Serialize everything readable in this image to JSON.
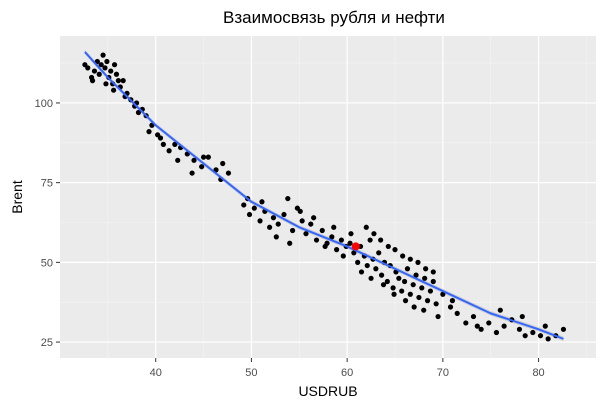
{
  "chart_data": {
    "type": "scatter",
    "title": "Взаимосвязь рубля и нефти",
    "xlabel": "USDRUB",
    "ylabel": "Brent",
    "xlim": [
      30,
      86
    ],
    "ylim": [
      20,
      121
    ],
    "xticks": [
      40,
      50,
      60,
      70,
      80
    ],
    "yticks": [
      25,
      50,
      75,
      100
    ],
    "xtick_labels": [
      "40",
      "50",
      "60",
      "70",
      "80"
    ],
    "ytick_labels": [
      "25",
      "50",
      "75",
      "100"
    ],
    "grid": true,
    "legend": "none",
    "colors": {
      "panel_bg": "#ebebeb",
      "grid_major": "#ffffff",
      "points": "#000000",
      "highlight": "#ff0000",
      "fit_line": "#3366ff",
      "fit_band": "#b3b3b3"
    },
    "points": [
      [
        32.6,
        112
      ],
      [
        32.9,
        111
      ],
      [
        33.3,
        108
      ],
      [
        33.6,
        110
      ],
      [
        33.9,
        113
      ],
      [
        34.1,
        109
      ],
      [
        34.3,
        112
      ],
      [
        34.5,
        115
      ],
      [
        34.7,
        111
      ],
      [
        34.9,
        113
      ],
      [
        35.1,
        108
      ],
      [
        35.3,
        110
      ],
      [
        35.5,
        106
      ],
      [
        35.7,
        112
      ],
      [
        35.9,
        109
      ],
      [
        36.1,
        107
      ],
      [
        36.3,
        105
      ],
      [
        36.6,
        107
      ],
      [
        37.0,
        103
      ],
      [
        37.4,
        101
      ],
      [
        37.8,
        99
      ],
      [
        38.2,
        97
      ],
      [
        38.6,
        98
      ],
      [
        39.0,
        96
      ],
      [
        39.6,
        93
      ],
      [
        40.2,
        90
      ],
      [
        40.8,
        87
      ],
      [
        41.4,
        85
      ],
      [
        42.0,
        87
      ],
      [
        42.6,
        86
      ],
      [
        43.3,
        84
      ],
      [
        44.0,
        82
      ],
      [
        44.8,
        80
      ],
      [
        45.5,
        83
      ],
      [
        46.3,
        79
      ],
      [
        47.0,
        81
      ],
      [
        47.6,
        78
      ],
      [
        33.4,
        107
      ],
      [
        34.8,
        106
      ],
      [
        35.6,
        104
      ],
      [
        36.8,
        102
      ],
      [
        38.0,
        100
      ],
      [
        39.3,
        91
      ],
      [
        40.5,
        89
      ],
      [
        42.3,
        82
      ],
      [
        43.8,
        78
      ],
      [
        45.0,
        83
      ],
      [
        46.8,
        76
      ],
      [
        49.2,
        68
      ],
      [
        49.8,
        65
      ],
      [
        50.3,
        67
      ],
      [
        50.9,
        63
      ],
      [
        51.4,
        66
      ],
      [
        51.9,
        61
      ],
      [
        52.3,
        64
      ],
      [
        52.8,
        62
      ],
      [
        53.4,
        65
      ],
      [
        53.8,
        70
      ],
      [
        54.3,
        60
      ],
      [
        54.8,
        67
      ],
      [
        55.3,
        63
      ],
      [
        55.7,
        59
      ],
      [
        56.2,
        62
      ],
      [
        56.8,
        57
      ],
      [
        57.4,
        60
      ],
      [
        57.9,
        56
      ],
      [
        58.4,
        58
      ],
      [
        58.9,
        54
      ],
      [
        59.4,
        57
      ],
      [
        59.9,
        55
      ],
      [
        49.6,
        70
      ],
      [
        51.1,
        69
      ],
      [
        52.6,
        58
      ],
      [
        54.0,
        56
      ],
      [
        55.1,
        66
      ],
      [
        56.5,
        64
      ],
      [
        57.7,
        55
      ],
      [
        58.6,
        61
      ],
      [
        59.6,
        52
      ],
      [
        60.4,
        59
      ],
      [
        60.3,
        56
      ],
      [
        60.7,
        53
      ],
      [
        61.1,
        50
      ],
      [
        61.4,
        55
      ],
      [
        61.8,
        52
      ],
      [
        62.1,
        49
      ],
      [
        62.4,
        57
      ],
      [
        62.7,
        51
      ],
      [
        63.0,
        48
      ],
      [
        63.3,
        53
      ],
      [
        63.6,
        46
      ],
      [
        63.9,
        50
      ],
      [
        64.2,
        44
      ],
      [
        64.5,
        49
      ],
      [
        64.8,
        42
      ],
      [
        65.1,
        47
      ],
      [
        65.4,
        45
      ],
      [
        65.7,
        41
      ],
      [
        66.0,
        44
      ],
      [
        66.3,
        48
      ],
      [
        66.6,
        40
      ],
      [
        66.9,
        43
      ],
      [
        67.2,
        46
      ],
      [
        67.5,
        39
      ],
      [
        67.8,
        42
      ],
      [
        68.1,
        45
      ],
      [
        68.4,
        38
      ],
      [
        68.7,
        41
      ],
      [
        69.0,
        44
      ],
      [
        69.3,
        37
      ],
      [
        62.0,
        61
      ],
      [
        62.8,
        59
      ],
      [
        63.5,
        57
      ],
      [
        64.3,
        55
      ],
      [
        65.0,
        54
      ],
      [
        65.8,
        52
      ],
      [
        66.6,
        51
      ],
      [
        67.4,
        50
      ],
      [
        68.2,
        48
      ],
      [
        69.0,
        47
      ],
      [
        61.5,
        47
      ],
      [
        62.5,
        45
      ],
      [
        63.8,
        43
      ],
      [
        64.9,
        40
      ],
      [
        66.1,
        38
      ],
      [
        67.0,
        36
      ],
      [
        68.0,
        35
      ],
      [
        69.5,
        33
      ],
      [
        70.0,
        40
      ],
      [
        70.8,
        36
      ],
      [
        71.5,
        34
      ],
      [
        72.4,
        31
      ],
      [
        73.2,
        33
      ],
      [
        74.0,
        29
      ],
      [
        74.8,
        31
      ],
      [
        75.6,
        28
      ],
      [
        76.4,
        30
      ],
      [
        77.2,
        32
      ],
      [
        78.0,
        29
      ],
      [
        78.6,
        27
      ],
      [
        79.4,
        28
      ],
      [
        80.2,
        27
      ],
      [
        81.0,
        26
      ],
      [
        81.8,
        27
      ],
      [
        82.6,
        29
      ],
      [
        71.0,
        38
      ],
      [
        73.6,
        30
      ],
      [
        76.0,
        35
      ],
      [
        78.3,
        33
      ],
      [
        80.7,
        30
      ]
    ],
    "highlight_point": [
      60.9,
      55
    ],
    "fit_curve": [
      [
        32.6,
        116
      ],
      [
        35,
        108
      ],
      [
        40,
        93
      ],
      [
        45,
        81
      ],
      [
        50,
        69
      ],
      [
        55,
        61
      ],
      [
        60,
        55
      ],
      [
        65,
        48
      ],
      [
        70,
        41
      ],
      [
        75,
        34
      ],
      [
        80,
        29
      ],
      [
        82.6,
        26
      ]
    ]
  }
}
